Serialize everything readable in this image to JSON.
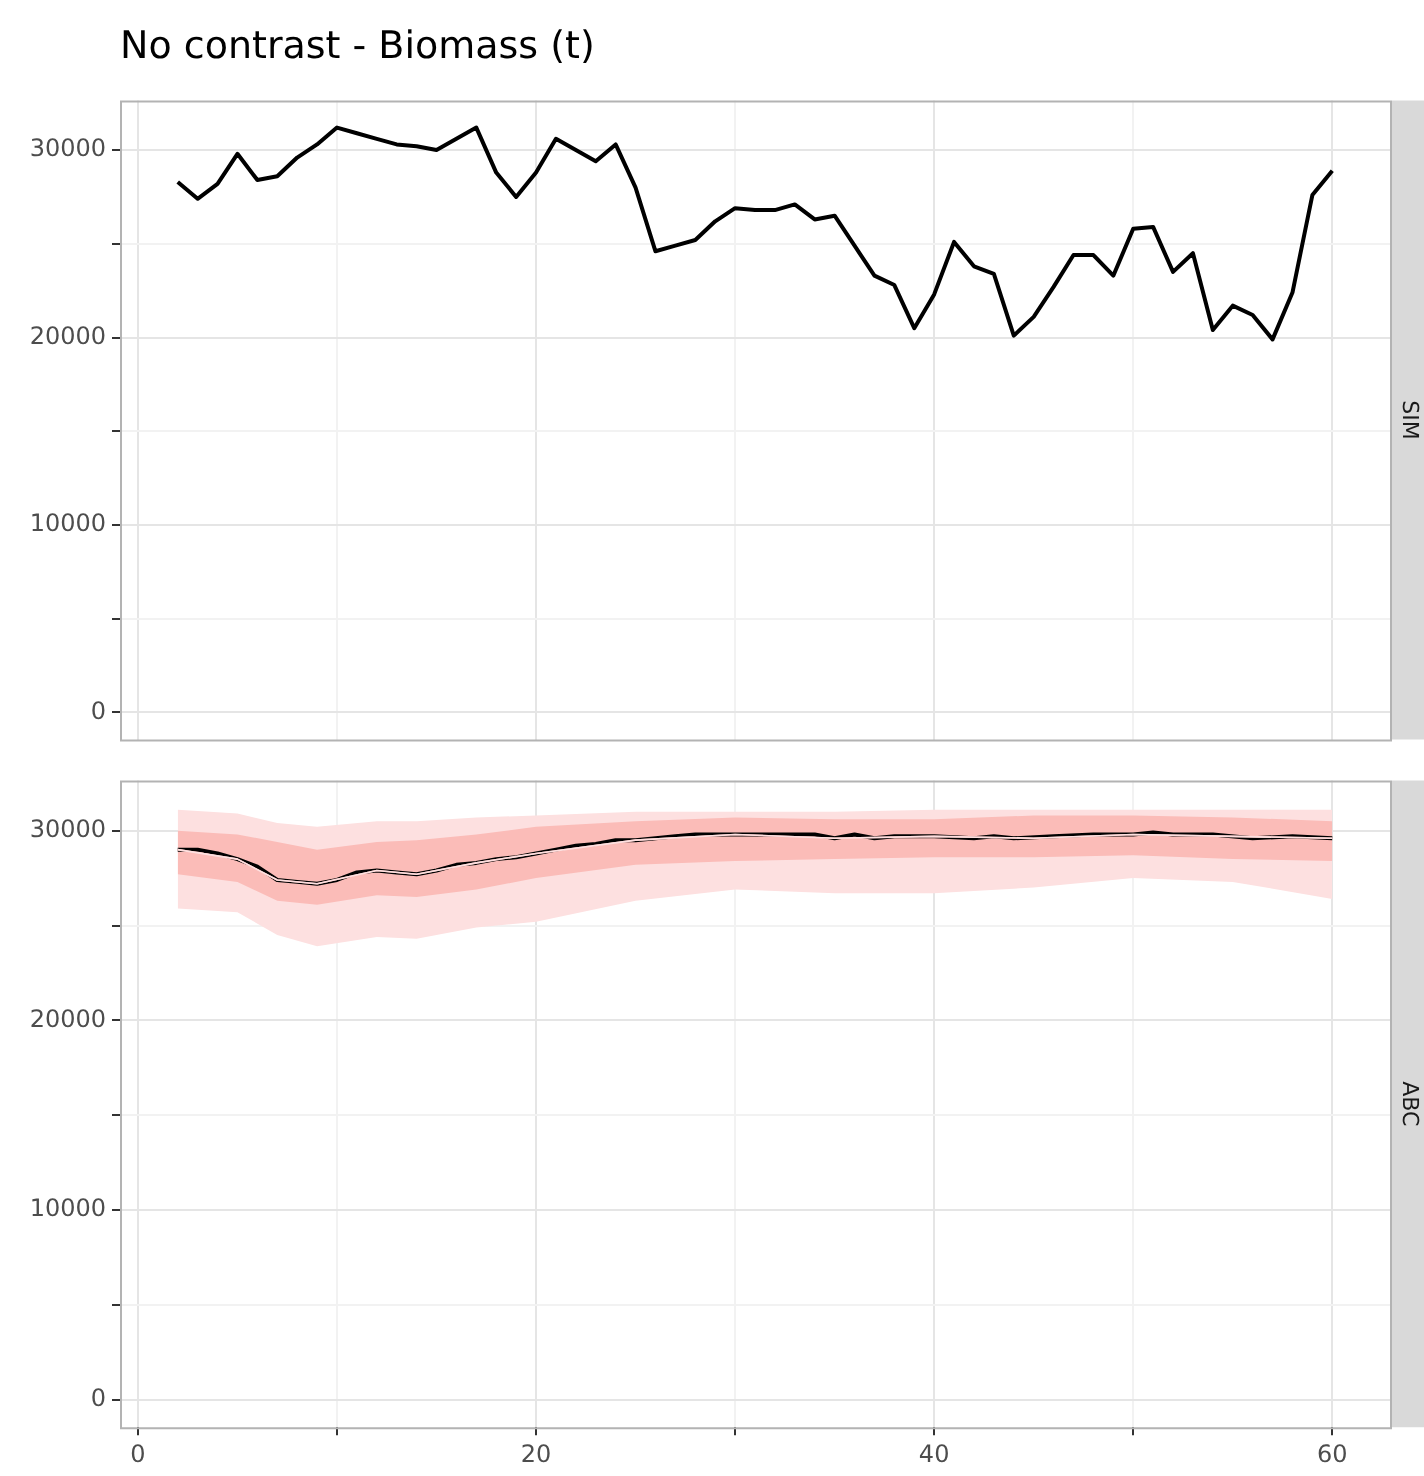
{
  "chart_data": [
    {
      "type": "line",
      "title": "No contrast - Biomass (t)",
      "y2label": "SIM",
      "tick_labels": "y",
      "grid": true,
      "legend": false,
      "marker": "none",
      "xlim": [
        -0.9,
        62.9
      ],
      "xticks": [
        0,
        {
          "value": 10,
          "label": null
        },
        20,
        {
          "value": 30,
          "label": null
        },
        40,
        {
          "value": 50,
          "label": null
        },
        60
      ],
      "ylim": [
        -1450,
        32650
      ],
      "yticks": [
        0,
        {
          "value": 5000,
          "label": null
        },
        10000,
        {
          "value": 15000,
          "label": null
        },
        20000,
        {
          "value": 25000,
          "label": null
        },
        30000
      ],
      "x": [
        2,
        3,
        4,
        5,
        6,
        7,
        8,
        9,
        10,
        11,
        12,
        13,
        14,
        15,
        16,
        17,
        18,
        19,
        20,
        21,
        22,
        23,
        24,
        25,
        26,
        27,
        28,
        29,
        30,
        31,
        32,
        33,
        34,
        35,
        36,
        37,
        38,
        39,
        40,
        41,
        42,
        43,
        44,
        45,
        46,
        47,
        48,
        49,
        50,
        51,
        52,
        53,
        54,
        55,
        56,
        57,
        58,
        59,
        60
      ],
      "series": [
        {
          "color": "#000000",
          "values": [
            28300,
            27400,
            28200,
            29800,
            28400,
            28600,
            29600,
            30300,
            31200,
            30900,
            30600,
            30300,
            30200,
            30000,
            30600,
            31200,
            28800,
            27500,
            28800,
            30600,
            30000,
            29400,
            30300,
            28000,
            24600,
            24900,
            25200,
            26200,
            26900,
            26800,
            26800,
            27100,
            26300,
            26500,
            24900,
            23300,
            22800,
            20500,
            22300,
            25100,
            23800,
            23400,
            20100,
            21100,
            22700,
            24400,
            24400,
            23300,
            25800,
            25900,
            23500,
            24500,
            20400,
            21700,
            21200,
            19900,
            22400,
            27600,
            28900
          ]
        }
      ]
    },
    {
      "type": "line",
      "y2label": "ABC",
      "grid": true,
      "legend": false,
      "marker": "none",
      "xlim": [
        -0.9,
        62.9
      ],
      "xticks": [
        0,
        {
          "value": 10,
          "label": null
        },
        20,
        {
          "value": 30,
          "label": null
        },
        40,
        {
          "value": 50,
          "label": null
        },
        60
      ],
      "ylim": [
        -1450,
        32650
      ],
      "yticks": [
        0,
        {
          "value": 5000,
          "label": null
        },
        10000,
        {
          "value": 15000,
          "label": null
        },
        20000,
        {
          "value": 25000,
          "label": null
        },
        30000
      ],
      "series": [
        {
          "type": "line",
          "color": "#fde0e0",
          "x": [
            2,
            5,
            7,
            9,
            12,
            14,
            17,
            20,
            25,
            30,
            35,
            40,
            45,
            50,
            55,
            60
          ],
          "lower": [
            25900,
            25700,
            24500,
            23900,
            24400,
            24300,
            24900,
            25200,
            26300,
            26900,
            26700,
            26700,
            27000,
            27500,
            27300,
            26400
          ],
          "upper": [
            31100,
            30900,
            30400,
            30200,
            30500,
            30500,
            30700,
            30800,
            31000,
            31000,
            31000,
            31100,
            31100,
            31100,
            31100,
            31100
          ],
          "values": [
            29000,
            28500,
            27400,
            27200,
            27900,
            27700,
            28300,
            28800,
            29500,
            29800,
            29600,
            29700,
            29600,
            29800,
            29700,
            29600
          ]
        },
        {
          "type": "line",
          "color": "#fbbcb8",
          "x": [
            2,
            5,
            7,
            9,
            12,
            14,
            17,
            20,
            25,
            30,
            35,
            40,
            45,
            50,
            55,
            60
          ],
          "lower": [
            27700,
            27300,
            26300,
            26100,
            26600,
            26500,
            26900,
            27500,
            28200,
            28400,
            28500,
            28600,
            28600,
            28700,
            28500,
            28400
          ],
          "upper": [
            30000,
            29800,
            29400,
            29000,
            29400,
            29500,
            29800,
            30200,
            30500,
            30700,
            30600,
            30600,
            30800,
            30800,
            30700,
            30500
          ],
          "values": [
            29000,
            28500,
            27400,
            27200,
            27900,
            27700,
            28300,
            28800,
            29500,
            29800,
            29600,
            29700,
            29600,
            29800,
            29700,
            29600
          ]
        },
        {
          "type": "line",
          "color": "#000000",
          "x": [
            2,
            3,
            4,
            5,
            6,
            7,
            8,
            9,
            10,
            11,
            12,
            13,
            14,
            15,
            16,
            17,
            18,
            19,
            20,
            21,
            22,
            23,
            24,
            25,
            26,
            27,
            28,
            30,
            32,
            34,
            35,
            36,
            37,
            38,
            40,
            42,
            43,
            44,
            46,
            48,
            50,
            51,
            52,
            54,
            56,
            58,
            60
          ],
          "values": [
            29000,
            29000,
            28800,
            28500,
            28100,
            27400,
            27300,
            27200,
            27400,
            27800,
            27900,
            27800,
            27700,
            27900,
            28200,
            28300,
            28500,
            28600,
            28800,
            29000,
            29200,
            29300,
            29500,
            29500,
            29600,
            29700,
            29800,
            29800,
            29800,
            29800,
            29600,
            29800,
            29600,
            29700,
            29700,
            29600,
            29700,
            29600,
            29700,
            29800,
            29800,
            29900,
            29800,
            29800,
            29600,
            29700,
            29600
          ]
        }
      ]
    }
  ]
}
